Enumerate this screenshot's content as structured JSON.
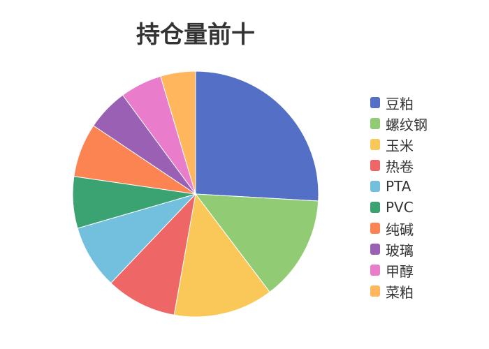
{
  "chart_data": {
    "type": "pie",
    "title": "持仓量前十",
    "legend_position": "right",
    "categories": [
      "豆粕",
      "螺纹钢",
      "玉米",
      "热卷",
      "PTA",
      "PVC",
      "纯碱",
      "玻璃",
      "甲醇",
      "菜粕"
    ],
    "values": [
      25.9,
      13.8,
      13.1,
      9.3,
      8.4,
      6.8,
      7.1,
      5.5,
      5.5,
      4.6
    ],
    "colors": [
      "#5470c6",
      "#91cc75",
      "#fac858",
      "#ee6666",
      "#73c0de",
      "#3ba272",
      "#fc8452",
      "#9a60b4",
      "#ea7ccc",
      "#ffb65c"
    ]
  }
}
